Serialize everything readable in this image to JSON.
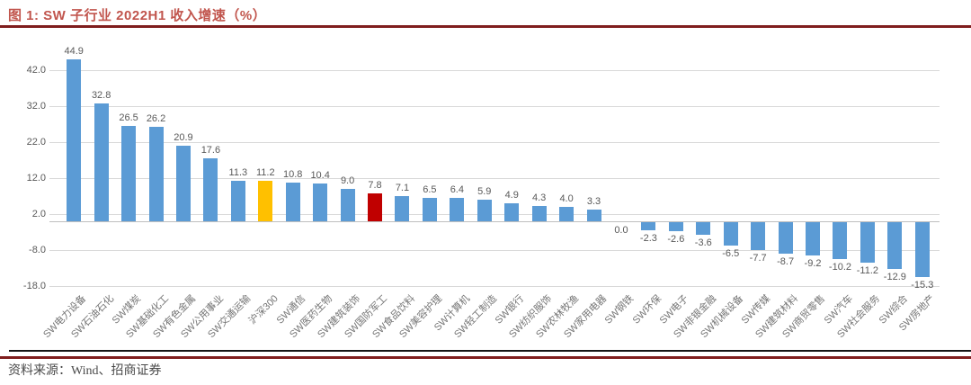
{
  "header": {
    "title": "图 1: SW 子行业 2022H1 收入增速（%）"
  },
  "footer": {
    "source": "资料来源：Wind、招商证券"
  },
  "colors": {
    "bar_default": "#5B9BD5",
    "bar_highlight_orange": "#FFC000",
    "bar_highlight_red": "#C00000",
    "title_text": "#C1554D",
    "rule_dark_red": "#7F1D1D",
    "gridline": "#D9D9D9",
    "axis_line": "#BFBFBF",
    "label_text": "#595959"
  },
  "chart_data": {
    "type": "bar",
    "title": "SW 子行业 2022H1 收入增速（%）",
    "xlabel": "",
    "ylabel": "",
    "categories": [
      "SW电力设备",
      "SW石油石化",
      "SW煤炭",
      "SW基础化工",
      "SW有色金属",
      "SW公用事业",
      "SW交通运输",
      "沪深300",
      "SW通信",
      "SW医药生物",
      "SW建筑装饰",
      "SW国防军工",
      "SW食品饮料",
      "SW美容护理",
      "SW计算机",
      "SW轻工制造",
      "SW银行",
      "SW纺织服饰",
      "SW农林牧渔",
      "SW家用电器",
      "SW钢铁",
      "SW环保",
      "SW电子",
      "SW非银金融",
      "SW机械设备",
      "SW传媒",
      "SW建筑材料",
      "SW商贸零售",
      "SW汽车",
      "SW社会服务",
      "SW综合",
      "SW房地产"
    ],
    "values": [
      44.9,
      32.8,
      26.5,
      26.2,
      20.9,
      17.6,
      11.3,
      11.2,
      10.8,
      10.4,
      9.0,
      7.8,
      7.1,
      6.5,
      6.4,
      5.9,
      4.9,
      4.3,
      4.0,
      3.3,
      0.0,
      -2.3,
      -2.6,
      -3.6,
      -6.5,
      -7.7,
      -8.7,
      -9.2,
      -10.2,
      -11.2,
      -12.9,
      -15.3
    ],
    "bar_color_overrides": {
      "沪深300": "#FFC000",
      "SW国防军工": "#C00000"
    },
    "y_ticks": [
      "42.0",
      "32.0",
      "22.0",
      "12.0",
      "2.0",
      "-8.0",
      "-18.0"
    ],
    "ylim": [
      -18,
      46.5
    ],
    "grid": true,
    "legend": false,
    "value_labels": "outside-end",
    "category_label_rotation_deg": 45
  }
}
